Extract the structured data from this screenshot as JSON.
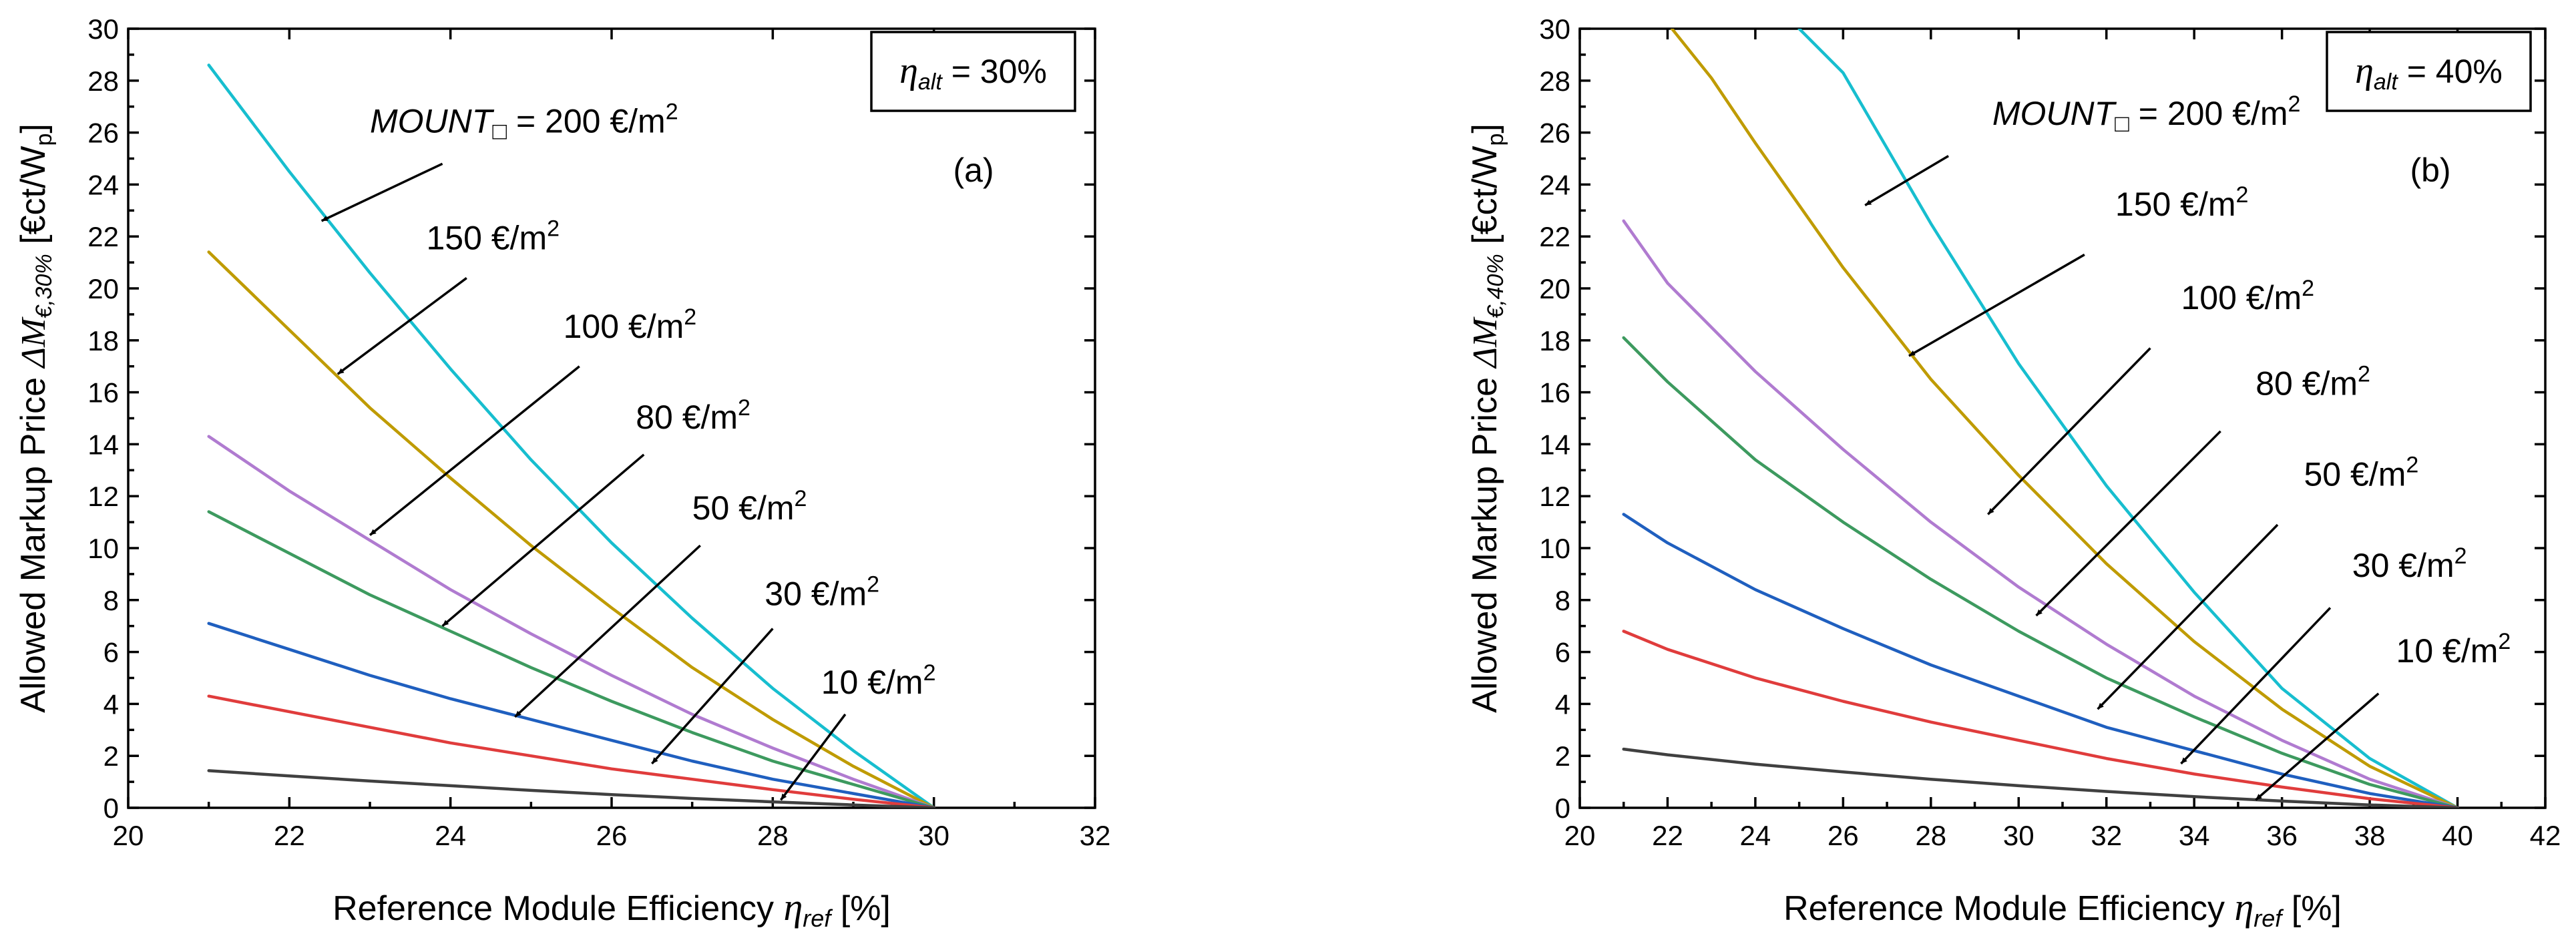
{
  "chart_data": [
    {
      "type": "line",
      "panel_label": "(a)",
      "legend": {
        "symbol": "η",
        "subscript": "alt",
        "value": " = 30%"
      },
      "xlabel": {
        "text": "Reference Module Efficiency ",
        "symbol": "η",
        "subscript": "ref",
        "unit": " [%]"
      },
      "ylabel": {
        "text": "Allowed Markup Price ",
        "symbol": "ΔM",
        "subscript": "€,30%",
        "unit": " [€ct/W",
        "unit_sub": "p",
        "unit_end": "]"
      },
      "xlim": [
        20,
        32
      ],
      "ylim": [
        0,
        30
      ],
      "xticks": [
        "20",
        "22",
        "24",
        "26",
        "28",
        "30",
        "32"
      ],
      "yticks": [
        "0",
        "2",
        "4",
        "6",
        "8",
        "10",
        "12",
        "14",
        "16",
        "18",
        "20",
        "22",
        "24",
        "26",
        "28",
        "30"
      ],
      "series": [
        {
          "name": "200 €/m²",
          "color": "#17becf",
          "x": [
            21,
            22,
            23,
            24,
            25,
            26,
            27,
            28,
            29,
            30
          ],
          "values": [
            28.6,
            24.5,
            20.6,
            16.9,
            13.4,
            10.2,
            7.3,
            4.6,
            2.2,
            0
          ]
        },
        {
          "name": "150 €/m²",
          "color": "#bf9b00",
          "x": [
            21,
            22,
            23,
            24,
            25,
            26,
            27,
            28,
            29,
            30
          ],
          "values": [
            21.4,
            18.4,
            15.4,
            12.7,
            10.1,
            7.7,
            5.4,
            3.4,
            1.6,
            0
          ]
        },
        {
          "name": "100 €/m²",
          "color": "#b07bd0",
          "x": [
            21,
            22,
            23,
            24,
            25,
            26,
            27,
            28,
            29,
            30
          ],
          "values": [
            14.3,
            12.2,
            10.3,
            8.4,
            6.7,
            5.1,
            3.6,
            2.3,
            1.1,
            0
          ]
        },
        {
          "name": "80 €/m²",
          "color": "#3d9a5f",
          "x": [
            21,
            22,
            23,
            24,
            25,
            26,
            27,
            28,
            29,
            30
          ],
          "values": [
            11.4,
            9.8,
            8.2,
            6.8,
            5.4,
            4.1,
            2.9,
            1.8,
            0.9,
            0
          ]
        },
        {
          "name": "50 €/m²",
          "color": "#1f5fbf",
          "x": [
            21,
            22,
            23,
            24,
            25,
            26,
            27,
            28,
            29,
            30
          ],
          "values": [
            7.1,
            6.1,
            5.1,
            4.2,
            3.4,
            2.6,
            1.8,
            1.1,
            0.55,
            0
          ]
        },
        {
          "name": "30 €/m²",
          "color": "#e03c3c",
          "x": [
            21,
            22,
            23,
            24,
            25,
            26,
            27,
            28,
            29,
            30
          ],
          "values": [
            4.3,
            3.7,
            3.1,
            2.5,
            2.0,
            1.5,
            1.1,
            0.7,
            0.33,
            0
          ]
        },
        {
          "name": "10 €/m²",
          "color": "#404040",
          "x": [
            21,
            22,
            23,
            24,
            25,
            26,
            27,
            28,
            29,
            30
          ],
          "values": [
            1.43,
            1.23,
            1.03,
            0.85,
            0.67,
            0.51,
            0.36,
            0.23,
            0.11,
            0
          ]
        }
      ],
      "annotations": [
        {
          "label": "MOUNT",
          "sub": "□",
          "value": " = 200 €/m",
          "sup": "2",
          "text_x": 23.0,
          "text_y": 26.0,
          "arrow_from": [
            23.9,
            24.8
          ],
          "arrow_to": [
            22.4,
            22.6
          ]
        },
        {
          "label": "",
          "sub": "",
          "value": "150 €/m",
          "sup": "2",
          "text_x": 23.7,
          "text_y": 21.5,
          "arrow_from": [
            24.2,
            20.4
          ],
          "arrow_to": [
            22.6,
            16.7
          ]
        },
        {
          "label": "",
          "sub": "",
          "value": "100 €/m",
          "sup": "2",
          "text_x": 25.4,
          "text_y": 18.1,
          "arrow_from": [
            25.6,
            17.0
          ],
          "arrow_to": [
            23.0,
            10.5
          ]
        },
        {
          "label": "",
          "sub": "",
          "value": "80 €/m",
          "sup": "2",
          "text_x": 26.3,
          "text_y": 14.6,
          "arrow_from": [
            26.4,
            13.6
          ],
          "arrow_to": [
            23.9,
            7.0
          ]
        },
        {
          "label": "",
          "sub": "",
          "value": "50 €/m",
          "sup": "2",
          "text_x": 27.0,
          "text_y": 11.1,
          "arrow_from": [
            27.1,
            10.1
          ],
          "arrow_to": [
            24.8,
            3.5
          ]
        },
        {
          "label": "",
          "sub": "",
          "value": "30 €/m",
          "sup": "2",
          "text_x": 27.9,
          "text_y": 7.8,
          "arrow_from": [
            28.0,
            6.9
          ],
          "arrow_to": [
            26.5,
            1.7
          ]
        },
        {
          "label": "",
          "sub": "",
          "value": "10 €/m",
          "sup": "2",
          "text_x": 28.6,
          "text_y": 4.4,
          "arrow_from": [
            28.9,
            3.6
          ],
          "arrow_to": [
            28.1,
            0.3
          ]
        }
      ]
    },
    {
      "type": "line",
      "panel_label": "(b)",
      "legend": {
        "symbol": "η",
        "subscript": "alt",
        "value": " = 40%"
      },
      "xlabel": {
        "text": "Reference Module Efficiency ",
        "symbol": "η",
        "subscript": "ref",
        "unit": " [%]"
      },
      "ylabel": {
        "text": "Allowed Markup Price ",
        "symbol": "ΔM",
        "subscript": "€,40%",
        "unit": " [€ct/W",
        "unit_sub": "p",
        "unit_end": "]"
      },
      "xlim": [
        20,
        42
      ],
      "ylim": [
        0,
        30
      ],
      "xticks": [
        "20",
        "22",
        "24",
        "26",
        "28",
        "30",
        "32",
        "34",
        "36",
        "38",
        "40",
        "42"
      ],
      "yticks": [
        "0",
        "2",
        "4",
        "6",
        "8",
        "10",
        "12",
        "14",
        "16",
        "18",
        "20",
        "22",
        "24",
        "26",
        "28",
        "30"
      ],
      "series": [
        {
          "name": "200 €/m²",
          "color": "#17becf",
          "x": [
            25,
            26,
            28,
            30,
            32,
            34,
            36,
            38,
            40
          ],
          "values": [
            30,
            28.3,
            22.5,
            17.1,
            12.4,
            8.3,
            4.6,
            1.9,
            0
          ]
        },
        {
          "name": "150 €/m²",
          "color": "#bf9b00",
          "x": [
            22.1,
            23,
            24,
            26,
            28,
            30,
            32,
            34,
            36,
            38,
            40
          ],
          "values": [
            30,
            28.1,
            25.6,
            20.8,
            16.5,
            12.8,
            9.4,
            6.4,
            3.8,
            1.6,
            0
          ]
        },
        {
          "name": "100 €/m²",
          "color": "#b07bd0",
          "x": [
            21,
            22,
            24,
            26,
            28,
            30,
            32,
            34,
            36,
            38,
            40
          ],
          "values": [
            22.6,
            20.2,
            16.8,
            13.8,
            11.0,
            8.5,
            6.3,
            4.3,
            2.6,
            1.1,
            0
          ]
        },
        {
          "name": "80 €/m²",
          "color": "#3d9a5f",
          "x": [
            21,
            22,
            24,
            26,
            28,
            30,
            32,
            34,
            36,
            38,
            40
          ],
          "values": [
            18.1,
            16.4,
            13.4,
            11.0,
            8.8,
            6.8,
            5.0,
            3.5,
            2.1,
            0.9,
            0
          ]
        },
        {
          "name": "50 €/m²",
          "color": "#1f5fbf",
          "x": [
            21,
            22,
            24,
            26,
            28,
            30,
            32,
            34,
            36,
            38,
            40
          ],
          "values": [
            11.3,
            10.2,
            8.4,
            6.9,
            5.5,
            4.3,
            3.1,
            2.2,
            1.3,
            0.55,
            0
          ]
        },
        {
          "name": "30 €/m²",
          "color": "#e03c3c",
          "x": [
            21,
            22,
            24,
            26,
            28,
            30,
            32,
            34,
            36,
            38,
            40
          ],
          "values": [
            6.8,
            6.1,
            5.0,
            4.1,
            3.3,
            2.6,
            1.9,
            1.3,
            0.8,
            0.35,
            0
          ]
        },
        {
          "name": "10 €/m²",
          "color": "#404040",
          "x": [
            21,
            22,
            24,
            26,
            28,
            30,
            32,
            34,
            36,
            38,
            40
          ],
          "values": [
            2.26,
            2.04,
            1.68,
            1.38,
            1.1,
            0.85,
            0.63,
            0.43,
            0.26,
            0.11,
            0
          ]
        }
      ],
      "annotations": [
        {
          "label": "MOUNT",
          "sub": "□",
          "value": " = 200 €/m",
          "sup": "2",
          "text_x": 29.4,
          "text_y": 26.3,
          "arrow_from": [
            28.4,
            25.1
          ],
          "arrow_to": [
            26.5,
            23.2
          ]
        },
        {
          "label": "",
          "sub": "",
          "value": "150 €/m",
          "sup": "2",
          "text_x": 32.2,
          "text_y": 22.8,
          "arrow_from": [
            31.5,
            21.3
          ],
          "arrow_to": [
            27.5,
            17.4
          ]
        },
        {
          "label": "",
          "sub": "",
          "value": "100 €/m",
          "sup": "2",
          "text_x": 33.7,
          "text_y": 19.2,
          "arrow_from": [
            33.0,
            17.7
          ],
          "arrow_to": [
            29.3,
            11.3
          ]
        },
        {
          "label": "",
          "sub": "",
          "value": "80 €/m",
          "sup": "2",
          "text_x": 35.4,
          "text_y": 15.9,
          "arrow_from": [
            34.6,
            14.5
          ],
          "arrow_to": [
            30.4,
            7.4
          ]
        },
        {
          "label": "",
          "sub": "",
          "value": "50 €/m",
          "sup": "2",
          "text_x": 36.5,
          "text_y": 12.4,
          "arrow_from": [
            35.9,
            10.9
          ],
          "arrow_to": [
            31.8,
            3.8
          ]
        },
        {
          "label": "",
          "sub": "",
          "value": "30 €/m",
          "sup": "2",
          "text_x": 37.6,
          "text_y": 8.9,
          "arrow_from": [
            37.1,
            7.7
          ],
          "arrow_to": [
            33.7,
            1.7
          ]
        },
        {
          "label": "",
          "sub": "",
          "value": "10 €/m",
          "sup": "2",
          "text_x": 38.6,
          "text_y": 5.6,
          "arrow_from": [
            38.2,
            4.4
          ],
          "arrow_to": [
            35.4,
            0.3
          ]
        }
      ]
    }
  ]
}
